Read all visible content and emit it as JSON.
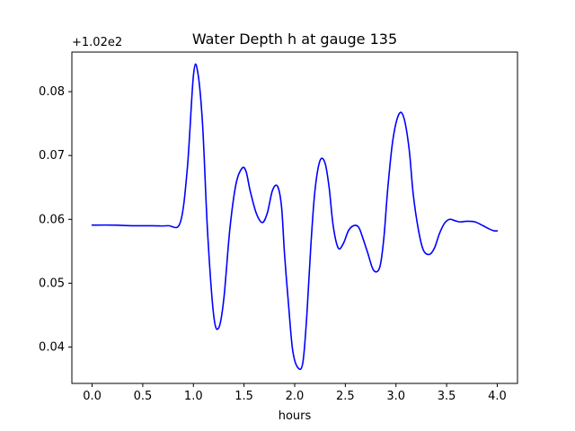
{
  "chart_data": {
    "type": "line",
    "title": "Water Depth h at gauge 135",
    "xlabel": "hours",
    "ylabel": "",
    "y_offset_label": "+1.02e2",
    "xlim": [
      -0.2,
      4.2
    ],
    "ylim": [
      0.0343,
      0.0862
    ],
    "x_ticks": [
      0.0,
      0.5,
      1.0,
      1.5,
      2.0,
      2.5,
      3.0,
      3.5,
      4.0
    ],
    "x_tick_labels": [
      "0.0",
      "0.5",
      "1.0",
      "1.5",
      "2.0",
      "2.5",
      "3.0",
      "3.5",
      "4.0"
    ],
    "y_ticks": [
      0.04,
      0.05,
      0.06,
      0.07,
      0.08
    ],
    "y_tick_labels": [
      "0.04",
      "0.05",
      "0.06",
      "0.07",
      "0.08"
    ],
    "grid": false,
    "line_color": "#0000ff",
    "series": [
      {
        "x": [
          0.0,
          0.2,
          0.4,
          0.6,
          0.75,
          0.87,
          0.94,
          1.0,
          1.04,
          1.09,
          1.14,
          1.2,
          1.25,
          1.3,
          1.36,
          1.42,
          1.48,
          1.52,
          1.56,
          1.62,
          1.68,
          1.73,
          1.78,
          1.83,
          1.87,
          1.9,
          1.94,
          1.98,
          2.03,
          2.08,
          2.12,
          2.16,
          2.2,
          2.25,
          2.3,
          2.34,
          2.38,
          2.43,
          2.48,
          2.53,
          2.58,
          2.63,
          2.67,
          2.72,
          2.78,
          2.84,
          2.88,
          2.92,
          2.97,
          3.03,
          3.08,
          3.13,
          3.17,
          3.22,
          3.27,
          3.33,
          3.38,
          3.43,
          3.48,
          3.53,
          3.58,
          3.63,
          3.7,
          3.78,
          3.86,
          3.92,
          3.97,
          4.0
        ],
        "y": [
          0.0591,
          0.0591,
          0.059,
          0.059,
          0.059,
          0.0595,
          0.068,
          0.0825,
          0.0833,
          0.075,
          0.058,
          0.045,
          0.043,
          0.0475,
          0.0585,
          0.0655,
          0.068,
          0.0675,
          0.0645,
          0.061,
          0.0595,
          0.061,
          0.0645,
          0.0652,
          0.062,
          0.0545,
          0.0465,
          0.0395,
          0.0368,
          0.0375,
          0.045,
          0.056,
          0.0645,
          0.0692,
          0.0688,
          0.065,
          0.059,
          0.0555,
          0.0562,
          0.0582,
          0.059,
          0.0588,
          0.0572,
          0.0548,
          0.052,
          0.0525,
          0.057,
          0.065,
          0.0725,
          0.0765,
          0.0758,
          0.071,
          0.064,
          0.0585,
          0.0552,
          0.0545,
          0.0555,
          0.0578,
          0.0594,
          0.06,
          0.0598,
          0.0596,
          0.0597,
          0.0596,
          0.059,
          0.0585,
          0.0582,
          0.0582
        ]
      }
    ]
  }
}
